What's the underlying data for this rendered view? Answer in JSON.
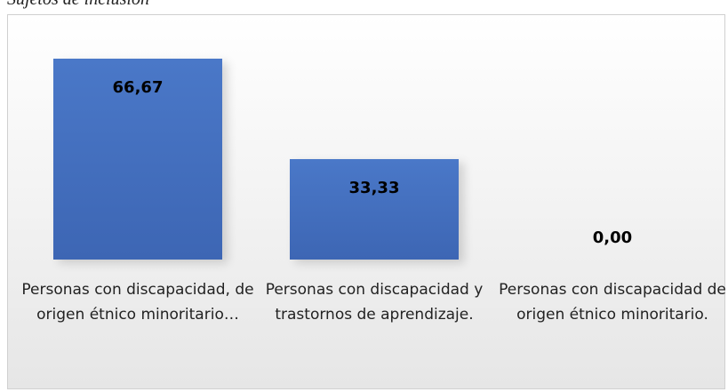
{
  "chart_data": {
    "type": "bar",
    "title": "Sujetos de inclusión",
    "categories": [
      "Personas con discapacidad, de origen étnico minoritario…",
      "Personas con discapacidad y trastornos de aprendizaje.",
      "Personas con discapacidad de origen étnico minoritario."
    ],
    "values": [
      66.67,
      33.33,
      0.0
    ],
    "value_labels": [
      "66,67",
      "33,33",
      "0,00"
    ],
    "color": "#4472c4"
  }
}
